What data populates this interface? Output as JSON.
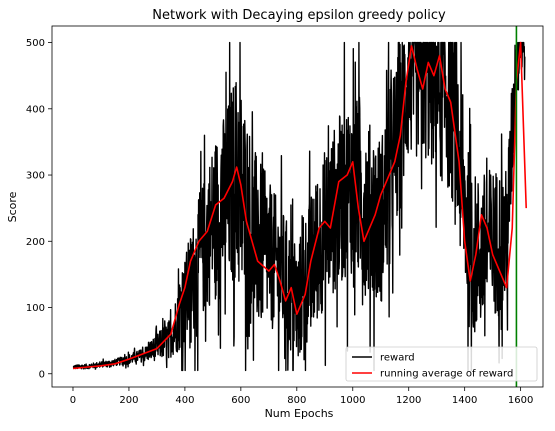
{
  "chart_data": {
    "type": "line",
    "title": "Network with Decaying epsilon greedy policy",
    "xlabel": "Num Epochs",
    "ylabel": "Score",
    "xlim": [
      -75,
      1680
    ],
    "ylim": [
      -20,
      525
    ],
    "xticks": [
      0,
      200,
      400,
      600,
      800,
      1000,
      1200,
      1400,
      1600
    ],
    "yticks": [
      0,
      100,
      200,
      300,
      400,
      500
    ],
    "legend_location": "lower right",
    "vertical_line": {
      "x": 1585,
      "color": "#008000"
    },
    "series": [
      {
        "name": "reward",
        "color": "#000000",
        "anchors": [
          [
            0,
            10
          ],
          [
            50,
            11
          ],
          [
            100,
            14
          ],
          [
            150,
            17
          ],
          [
            200,
            22
          ],
          [
            250,
            28
          ],
          [
            300,
            40
          ],
          [
            350,
            55
          ],
          [
            400,
            110
          ],
          [
            450,
            170
          ],
          [
            500,
            230
          ],
          [
            550,
            260
          ],
          [
            580,
            300
          ],
          [
            600,
            270
          ],
          [
            650,
            200
          ],
          [
            700,
            180
          ],
          [
            750,
            150
          ],
          [
            800,
            100
          ],
          [
            830,
            140
          ],
          [
            850,
            160
          ],
          [
            900,
            220
          ],
          [
            950,
            260
          ],
          [
            1000,
            290
          ],
          [
            1050,
            250
          ],
          [
            1100,
            230
          ],
          [
            1150,
            330
          ],
          [
            1200,
            450
          ],
          [
            1250,
            460
          ],
          [
            1300,
            440
          ],
          [
            1350,
            420
          ],
          [
            1400,
            260
          ],
          [
            1420,
            180
          ],
          [
            1450,
            180
          ],
          [
            1500,
            200
          ],
          [
            1550,
            200
          ],
          [
            1575,
            400
          ],
          [
            1585,
            480
          ],
          [
            1600,
            500
          ],
          [
            1615,
            500
          ]
        ],
        "noise": [
          [
            0,
            3
          ],
          [
            150,
            5
          ],
          [
            250,
            10
          ],
          [
            350,
            30
          ],
          [
            400,
            70
          ],
          [
            500,
            120
          ],
          [
            600,
            170
          ],
          [
            700,
            110
          ],
          [
            800,
            90
          ],
          [
            850,
            110
          ],
          [
            1000,
            140
          ],
          [
            1100,
            130
          ],
          [
            1200,
            130
          ],
          [
            1350,
            150
          ],
          [
            1450,
            120
          ],
          [
            1550,
            110
          ],
          [
            1600,
            60
          ]
        ]
      },
      {
        "name": "running average of reward",
        "color": "#ff0000",
        "points": [
          [
            0,
            8
          ],
          [
            50,
            10
          ],
          [
            100,
            12
          ],
          [
            150,
            15
          ],
          [
            200,
            22
          ],
          [
            250,
            30
          ],
          [
            300,
            38
          ],
          [
            350,
            60
          ],
          [
            380,
            105
          ],
          [
            400,
            130
          ],
          [
            420,
            170
          ],
          [
            450,
            200
          ],
          [
            480,
            215
          ],
          [
            510,
            255
          ],
          [
            540,
            265
          ],
          [
            570,
            290
          ],
          [
            585,
            312
          ],
          [
            600,
            285
          ],
          [
            620,
            230
          ],
          [
            640,
            200
          ],
          [
            660,
            170
          ],
          [
            700,
            155
          ],
          [
            720,
            165
          ],
          [
            740,
            140
          ],
          [
            760,
            110
          ],
          [
            780,
            130
          ],
          [
            800,
            90
          ],
          [
            830,
            120
          ],
          [
            850,
            170
          ],
          [
            880,
            220
          ],
          [
            900,
            230
          ],
          [
            920,
            220
          ],
          [
            950,
            290
          ],
          [
            980,
            300
          ],
          [
            1000,
            320
          ],
          [
            1020,
            250
          ],
          [
            1040,
            200
          ],
          [
            1060,
            220
          ],
          [
            1080,
            240
          ],
          [
            1100,
            270
          ],
          [
            1120,
            290
          ],
          [
            1150,
            320
          ],
          [
            1170,
            360
          ],
          [
            1190,
            440
          ],
          [
            1210,
            495
          ],
          [
            1230,
            460
          ],
          [
            1250,
            430
          ],
          [
            1270,
            470
          ],
          [
            1290,
            450
          ],
          [
            1310,
            480
          ],
          [
            1330,
            430
          ],
          [
            1350,
            410
          ],
          [
            1380,
            320
          ],
          [
            1400,
            200
          ],
          [
            1420,
            140
          ],
          [
            1440,
            180
          ],
          [
            1460,
            240
          ],
          [
            1480,
            220
          ],
          [
            1500,
            180
          ],
          [
            1530,
            150
          ],
          [
            1550,
            130
          ],
          [
            1570,
            220
          ],
          [
            1585,
            440
          ],
          [
            1600,
            500
          ],
          [
            1620,
            250
          ]
        ]
      }
    ]
  }
}
